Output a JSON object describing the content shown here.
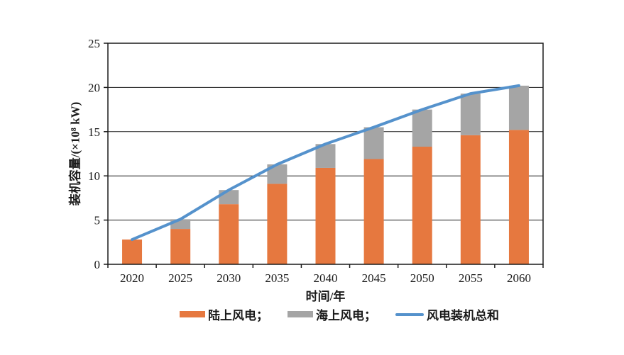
{
  "figure": {
    "background": "#ffffff",
    "text_color": "#1a1a1a"
  },
  "chart_data": {
    "type": "bar",
    "subtype": "stacked-bars-with-total-line",
    "categories": [
      "2020",
      "2025",
      "2030",
      "2035",
      "2040",
      "2045",
      "2050",
      "2055",
      "2060"
    ],
    "series": [
      {
        "name": "陆上风电",
        "kind": "bar",
        "color": "#E6783F",
        "values": [
          2.8,
          4.0,
          6.8,
          9.1,
          10.9,
          11.9,
          13.3,
          14.6,
          15.2
        ]
      },
      {
        "name": "海上风电",
        "kind": "bar",
        "color": "#A5A5A5",
        "values": [
          0,
          1.1,
          1.6,
          2.2,
          2.7,
          3.6,
          4.2,
          4.7,
          5.0
        ]
      },
      {
        "name": "风电装机总和",
        "kind": "line",
        "color": "#5592CC",
        "values": [
          2.8,
          5.1,
          8.4,
          11.3,
          13.6,
          15.5,
          17.5,
          19.3,
          20.2
        ]
      }
    ],
    "stacked": true,
    "xlabel": "时间/年",
    "ylabel": "装机容量/(×10⁸ kW)",
    "ylim": [
      0,
      25
    ],
    "yticks": [
      0,
      5,
      10,
      15,
      20,
      25
    ],
    "grid": true,
    "legend_position": "bottom",
    "legend_labels": [
      "陆上风电；",
      "海上风电；",
      "风电装机总和"
    ]
  }
}
